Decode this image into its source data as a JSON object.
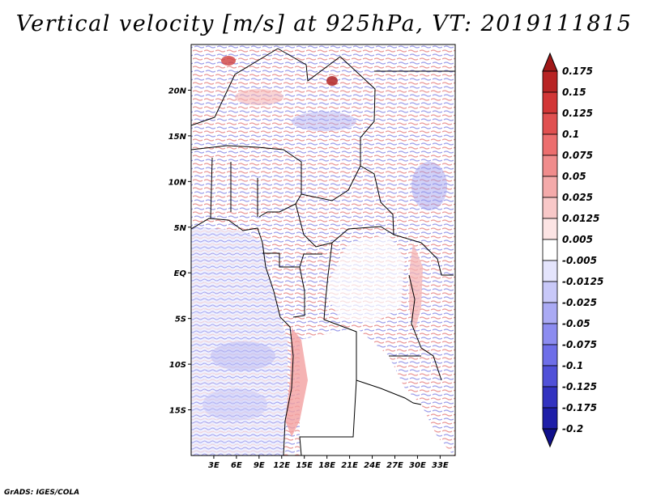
{
  "title": "Vertical velocity [m/s] at 925hPa, VT: 2019111815",
  "credit": "GrADS: IGES/COLA",
  "map": {
    "lon_range": [
      0,
      35
    ],
    "lat_range": [
      -20,
      25
    ],
    "lon_ticks": [
      "3E",
      "6E",
      "9E",
      "12E",
      "15E",
      "18E",
      "21E",
      "24E",
      "27E",
      "30E",
      "33E"
    ],
    "lat_ticks": [
      "20N",
      "15N",
      "10N",
      "5N",
      "EQ",
      "5S",
      "10S",
      "15S"
    ]
  },
  "colorbar": {
    "levels": [
      "0.175",
      "0.15",
      "0.125",
      "0.1",
      "0.075",
      "0.05",
      "0.025",
      "0.0125",
      "0.005",
      "-0.005",
      "-0.0125",
      "-0.025",
      "-0.05",
      "-0.075",
      "-0.1",
      "-0.125",
      "-0.175",
      "-0.2"
    ],
    "colors": [
      "#a01818",
      "#b82424",
      "#d23636",
      "#e05050",
      "#ec6e6e",
      "#f08c8c",
      "#f4aaaa",
      "#f8c8c8",
      "#fce4e4",
      "#ffffff",
      "#e4e4fc",
      "#c8c8f8",
      "#aaaaf4",
      "#8c8cf0",
      "#6e6ee8",
      "#5050d8",
      "#3232c0",
      "#1e1ea8",
      "#10108c"
    ]
  },
  "palette": {
    "border": "#000000",
    "coast": "#000000"
  }
}
